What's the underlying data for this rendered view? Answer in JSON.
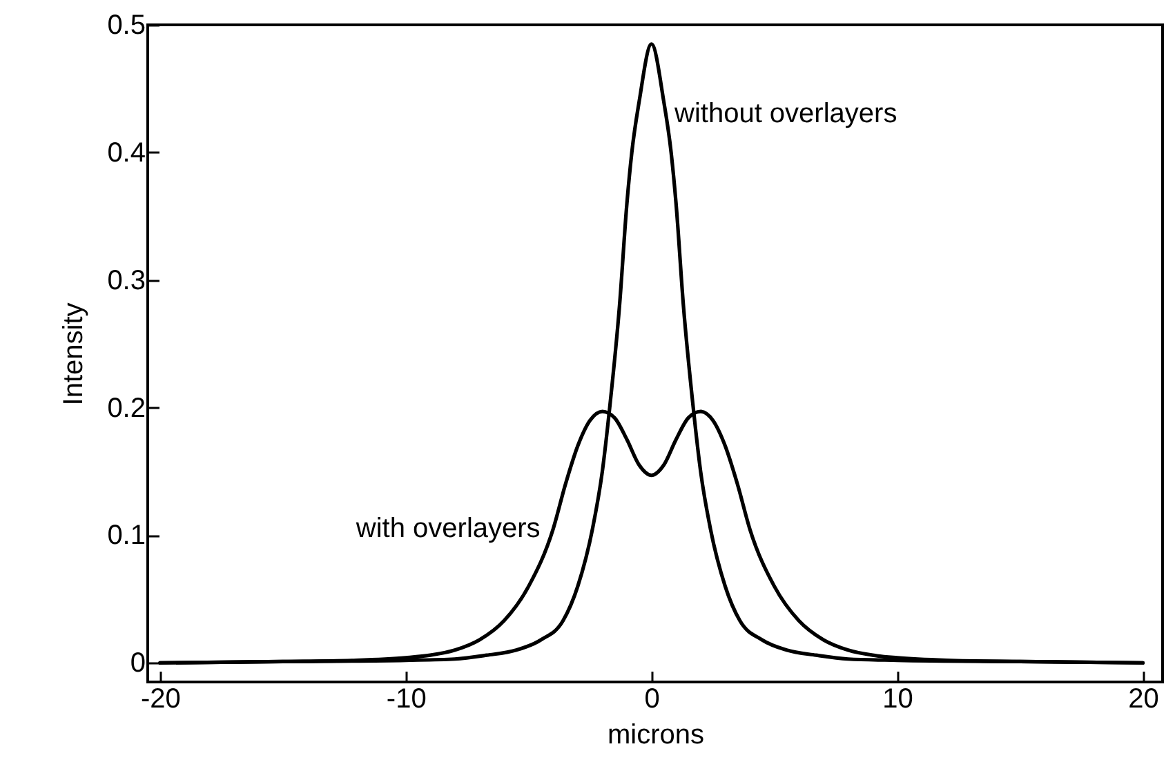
{
  "chart_data": {
    "type": "line",
    "xlabel": "microns",
    "ylabel": "Intensity",
    "xlim": [
      -20.5,
      20.8
    ],
    "ylim": [
      -0.015,
      0.5
    ],
    "xticks": [
      -20,
      -10,
      0,
      10,
      20
    ],
    "yticks": [
      0,
      0.1,
      0.2,
      0.3,
      0.4,
      0.5
    ],
    "grid": false,
    "marker": "none",
    "line_style": "solid",
    "series": [
      {
        "color": "#000000",
        "x": [
          -20,
          -15,
          -10,
          -8,
          -6.7,
          -5.5,
          -4.5,
          -3.6,
          -3,
          -2.4,
          -2,
          -1.7,
          -1.3,
          -1,
          -0.8,
          -0.5,
          0,
          0.5,
          0.8,
          1,
          1.3,
          1.7,
          2,
          2.4,
          3,
          3.6,
          4.5,
          5.5,
          6.7,
          8,
          10,
          15,
          20
        ],
        "values": [
          0,
          0.001,
          0.002,
          0.003,
          0.006,
          0.01,
          0.018,
          0.033,
          0.06,
          0.105,
          0.15,
          0.2,
          0.28,
          0.36,
          0.4,
          0.44,
          0.485,
          0.44,
          0.4,
          0.36,
          0.28,
          0.2,
          0.15,
          0.105,
          0.06,
          0.033,
          0.018,
          0.01,
          0.006,
          0.003,
          0.002,
          0.001,
          0
        ]
      },
      {
        "color": "#000000",
        "x": [
          -20,
          -15,
          -12,
          -10,
          -9,
          -8,
          -7,
          -6,
          -5,
          -4,
          -3.5,
          -3,
          -2.5,
          -2,
          -1.5,
          -1,
          -0.5,
          0,
          0.5,
          1,
          1.5,
          2,
          2.5,
          3,
          3.5,
          4,
          5,
          6,
          7,
          8,
          9,
          10,
          12,
          15,
          20
        ],
        "values": [
          0,
          0.001,
          0.002,
          0.004,
          0.006,
          0.01,
          0.018,
          0.033,
          0.06,
          0.105,
          0.14,
          0.17,
          0.19,
          0.197,
          0.192,
          0.175,
          0.155,
          0.147,
          0.155,
          0.175,
          0.192,
          0.197,
          0.19,
          0.17,
          0.14,
          0.105,
          0.06,
          0.033,
          0.018,
          0.01,
          0.006,
          0.004,
          0.002,
          0.001,
          0
        ]
      }
    ],
    "annotations": [
      {
        "text": "without overlayers",
        "x": 0.6,
        "y": 0.43
      },
      {
        "text": "with overlayers",
        "x": -4.3,
        "y": 0.105
      }
    ]
  }
}
